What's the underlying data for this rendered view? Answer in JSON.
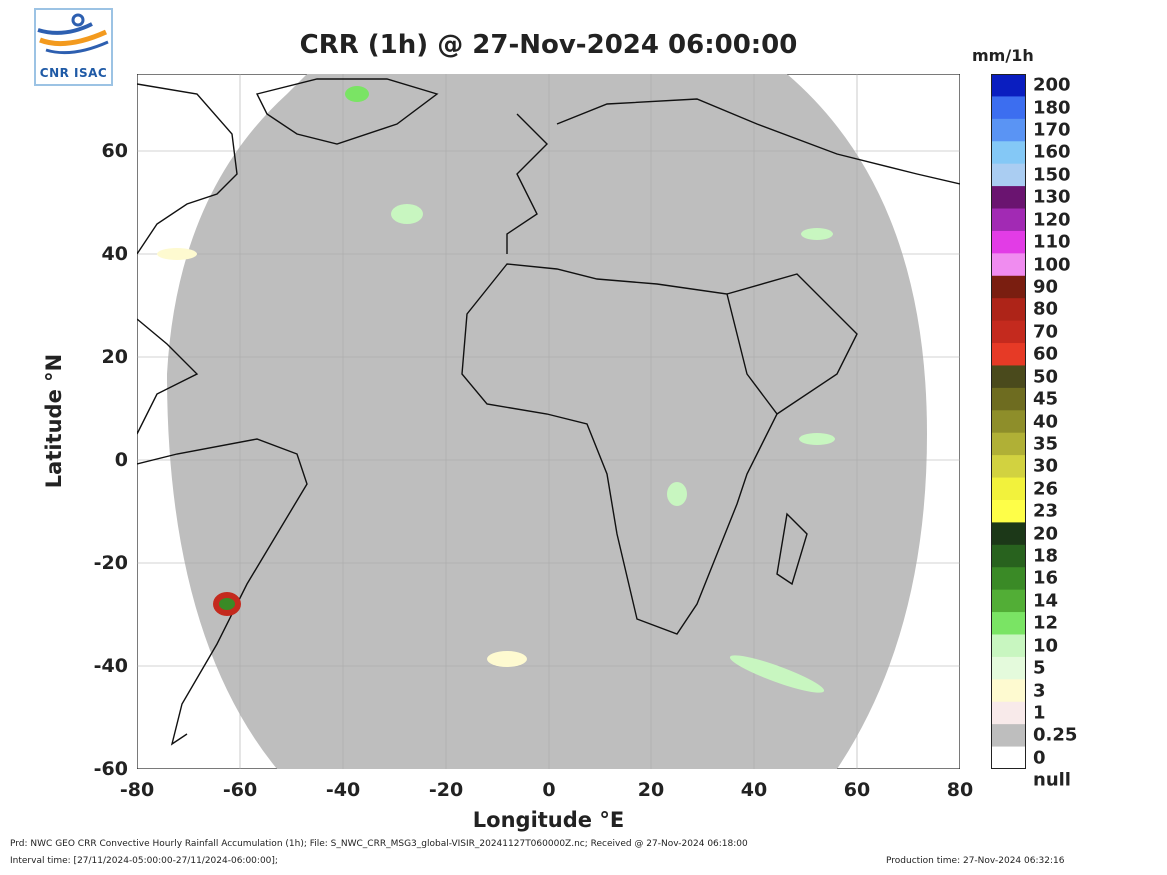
{
  "logo": {
    "text": "CNR ISAC"
  },
  "title": "CRR (1h) @ 27-Nov-2024 06:00:00",
  "units": "mm/1h",
  "xlabel": "Longitude °E",
  "ylabel": "Latitude °N",
  "x_ticks": [
    "-80",
    "-60",
    "-40",
    "-20",
    "0",
    "20",
    "40",
    "60",
    "80"
  ],
  "y_ticks": [
    "60",
    "40",
    "20",
    "0",
    "-20",
    "-40",
    "-60"
  ],
  "legend": {
    "labels": [
      "200",
      "180",
      "170",
      "160",
      "150",
      "130",
      "120",
      "110",
      "100",
      "90",
      "80",
      "70",
      "60",
      "50",
      "45",
      "40",
      "35",
      "30",
      "26",
      "23",
      "20",
      "18",
      "16",
      "14",
      "12",
      "10",
      "5",
      "3",
      "1",
      "0.25",
      "0",
      "null"
    ],
    "colors": [
      "#0a1ec0",
      "#3c6ef0",
      "#5a94f4",
      "#84c8f6",
      "#aacdf2",
      "#6a1470",
      "#a22ab4",
      "#e23ce6",
      "#f08cf0",
      "#7a1e10",
      "#ae2418",
      "#c42a1e",
      "#e63a26",
      "#4a4a1c",
      "#6e6c20",
      "#8e8e2a",
      "#b0b036",
      "#d2d240",
      "#f2f23c",
      "#fefe48",
      "#1c3818",
      "#28621e",
      "#3a8a26",
      "#52ae36",
      "#7ae464",
      "#c8f6c0",
      "#e4fadc",
      "#fefad0",
      "#f8eaea",
      "#bebebe",
      "#ffffff"
    ]
  },
  "map": {
    "ocean_color": "#bebebe",
    "background_color": "#ffffff",
    "extent": {
      "lon": [
        -80,
        80
      ],
      "lat": [
        -60,
        75
      ]
    }
  },
  "footer": {
    "line1": "Prd: NWC GEO CRR Convective Hourly Rainfall Accumulation (1h); File: S_NWC_CRR_MSG3_global-VISIR_20241127T060000Z.nc; Received @ 27-Nov-2024 06:18:00",
    "line2": "Interval time: [27/11/2024-05:00:00-27/11/2024-06:00:00];",
    "production": "Production time: 27-Nov-2024 06:32:16"
  }
}
